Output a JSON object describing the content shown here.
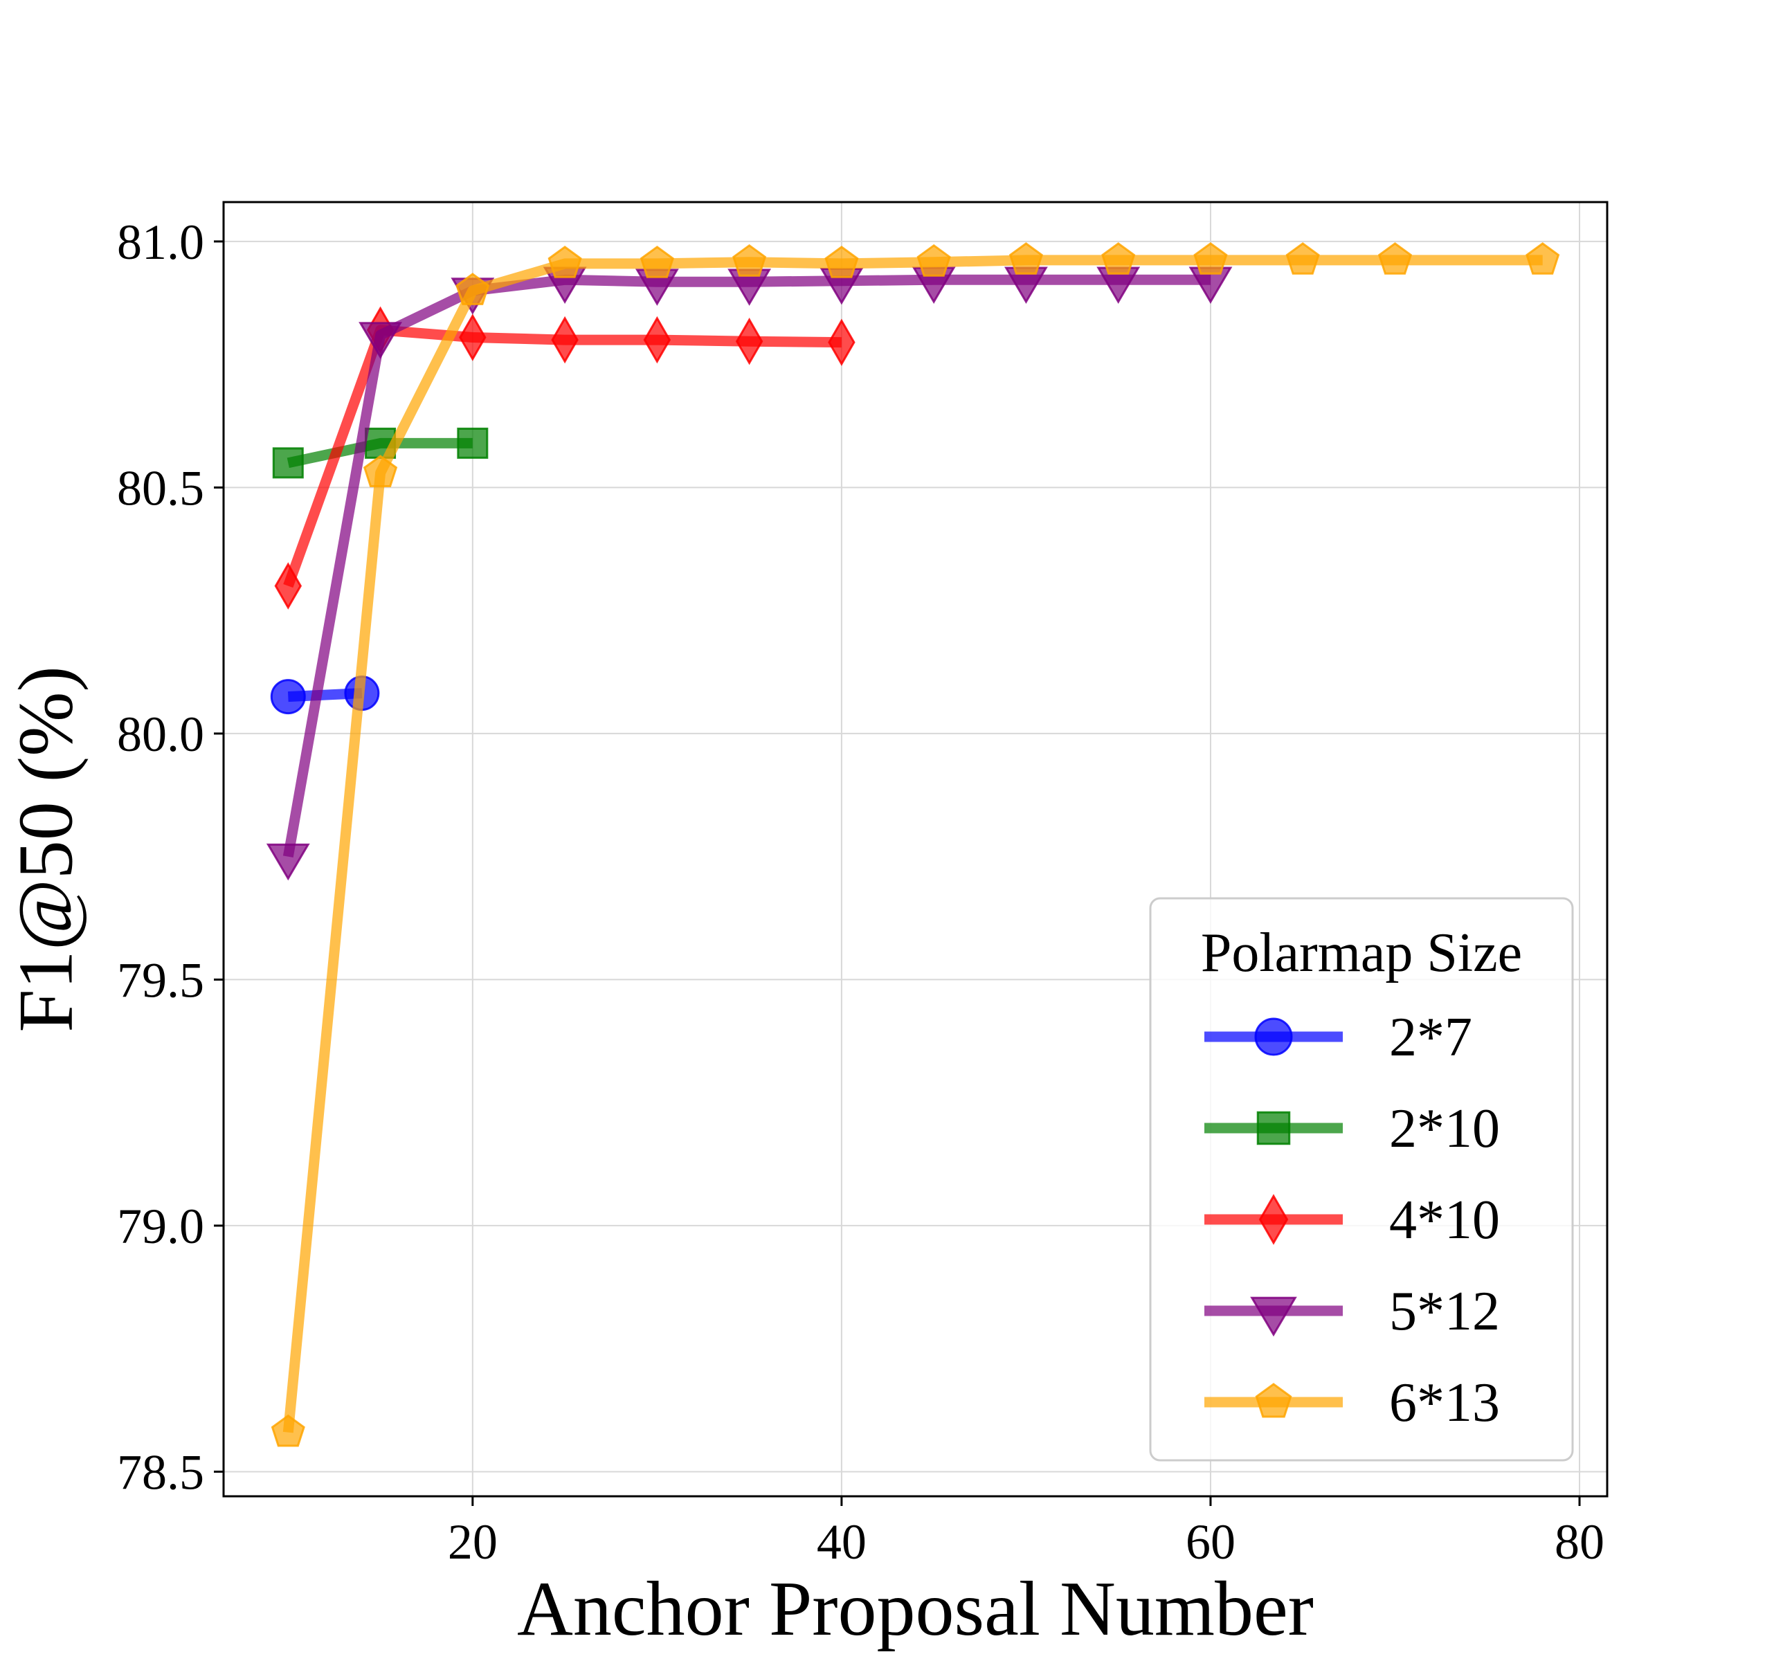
{
  "chart_data": {
    "type": "line",
    "title": "",
    "xlabel": "Anchor Proposal Number",
    "ylabel": "F1@50 (%)",
    "xlim": [
      6.5,
      81.5
    ],
    "ylim": [
      78.45,
      81.08
    ],
    "xticks": [
      20,
      40,
      60,
      80
    ],
    "yticks": [
      78.5,
      79.0,
      79.5,
      80.0,
      80.5,
      81.0
    ],
    "xtick_labels": [
      "20",
      "40",
      "60",
      "80"
    ],
    "ytick_labels": [
      "78.5",
      "79.0",
      "79.5",
      "80.0",
      "80.5",
      "81.0"
    ],
    "grid": true,
    "legend": {
      "title": "Polarmap Size",
      "placement": "lower-right"
    },
    "series": [
      {
        "name": "2*7",
        "color": "#0000ff",
        "marker": "circle",
        "x": [
          10,
          14
        ],
        "y": [
          80.075,
          80.082
        ]
      },
      {
        "name": "2*10",
        "color": "#008000",
        "marker": "square",
        "x": [
          10,
          15,
          20
        ],
        "y": [
          80.55,
          80.59,
          80.59
        ]
      },
      {
        "name": "4*10",
        "color": "#ff0000",
        "marker": "diamond",
        "x": [
          10,
          15,
          20,
          25,
          30,
          35,
          40
        ],
        "y": [
          80.3,
          80.82,
          80.805,
          80.8,
          80.8,
          80.797,
          80.795
        ]
      },
      {
        "name": "5*12",
        "color": "#800080",
        "marker": "triangle-down",
        "x": [
          10,
          15,
          20,
          25,
          30,
          35,
          40,
          45,
          50,
          55,
          60
        ],
        "y": [
          79.75,
          80.81,
          80.9,
          80.922,
          80.918,
          80.918,
          80.92,
          80.922,
          80.922,
          80.922,
          80.922
        ]
      },
      {
        "name": "6*13",
        "color": "#ffa500",
        "marker": "pentagon",
        "x": [
          10,
          15,
          20,
          25,
          30,
          35,
          40,
          45,
          50,
          55,
          60,
          65,
          70,
          78
        ],
        "y": [
          78.58,
          80.53,
          80.9,
          80.955,
          80.955,
          80.958,
          80.955,
          80.958,
          80.962,
          80.962,
          80.962,
          80.962,
          80.962,
          80.962
        ]
      }
    ]
  }
}
